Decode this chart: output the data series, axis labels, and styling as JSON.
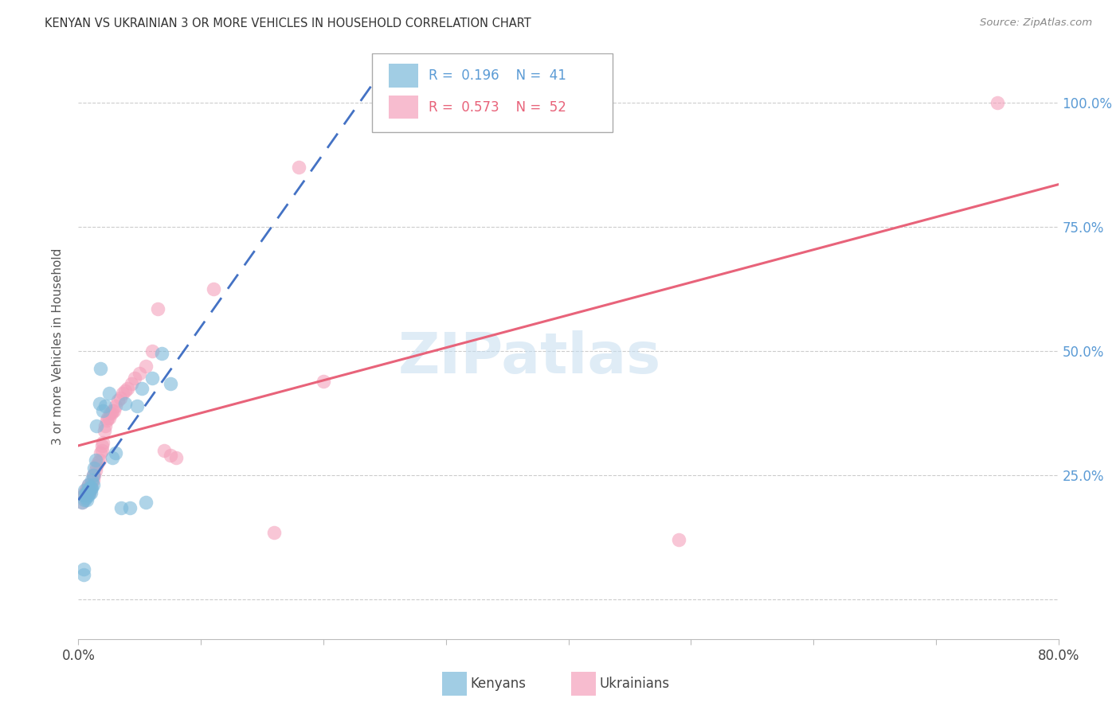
{
  "title": "KENYAN VS UKRAINIAN 3 OR MORE VEHICLES IN HOUSEHOLD CORRELATION CHART",
  "source": "Source: ZipAtlas.com",
  "ylabel": "3 or more Vehicles in Household",
  "xlim": [
    0.0,
    0.8
  ],
  "ylim": [
    -0.08,
    1.1
  ],
  "xtick_positions": [
    0.0,
    0.1,
    0.2,
    0.3,
    0.4,
    0.5,
    0.6,
    0.7,
    0.8
  ],
  "xticklabels": [
    "0.0%",
    "",
    "",
    "",
    "",
    "",
    "",
    "",
    "80.0%"
  ],
  "ytick_positions": [
    0.0,
    0.25,
    0.5,
    0.75,
    1.0
  ],
  "ytick_labels": [
    "",
    "25.0%",
    "50.0%",
    "75.0%",
    "100.0%"
  ],
  "background_color": "#ffffff",
  "grid_color": "#cccccc",
  "watermark_text": "ZIPatlas",
  "kenyan_color": "#7ab8d9",
  "ukrainian_color": "#f4a0bb",
  "kenyan_line_color": "#4472c4",
  "ukrainian_line_color": "#e8637a",
  "right_label_color": "#5b9bd5",
  "kenyan_R": 0.196,
  "kenyan_N": 41,
  "ukrainian_R": 0.573,
  "ukrainian_N": 52,
  "kenyan_x": [
    0.003,
    0.004,
    0.004,
    0.005,
    0.005,
    0.005,
    0.006,
    0.006,
    0.007,
    0.007,
    0.007,
    0.008,
    0.008,
    0.008,
    0.009,
    0.009,
    0.01,
    0.01,
    0.011,
    0.011,
    0.012,
    0.012,
    0.013,
    0.014,
    0.015,
    0.017,
    0.018,
    0.02,
    0.022,
    0.025,
    0.028,
    0.03,
    0.035,
    0.038,
    0.042,
    0.048,
    0.052,
    0.055,
    0.06,
    0.068,
    0.075
  ],
  "kenyan_y": [
    0.195,
    0.05,
    0.06,
    0.2,
    0.21,
    0.22,
    0.205,
    0.215,
    0.2,
    0.21,
    0.215,
    0.21,
    0.22,
    0.23,
    0.215,
    0.225,
    0.215,
    0.225,
    0.225,
    0.24,
    0.23,
    0.25,
    0.265,
    0.28,
    0.35,
    0.395,
    0.465,
    0.38,
    0.39,
    0.415,
    0.285,
    0.295,
    0.185,
    0.395,
    0.185,
    0.39,
    0.425,
    0.195,
    0.445,
    0.495,
    0.435
  ],
  "ukrainian_x": [
    0.003,
    0.004,
    0.005,
    0.006,
    0.007,
    0.007,
    0.008,
    0.009,
    0.009,
    0.01,
    0.011,
    0.012,
    0.012,
    0.013,
    0.014,
    0.015,
    0.016,
    0.017,
    0.018,
    0.019,
    0.019,
    0.02,
    0.021,
    0.022,
    0.023,
    0.024,
    0.025,
    0.026,
    0.027,
    0.028,
    0.029,
    0.03,
    0.032,
    0.034,
    0.036,
    0.038,
    0.04,
    0.043,
    0.046,
    0.05,
    0.055,
    0.06,
    0.065,
    0.07,
    0.075,
    0.08,
    0.11,
    0.16,
    0.18,
    0.2,
    0.49,
    0.75
  ],
  "ukrainian_y": [
    0.195,
    0.21,
    0.215,
    0.22,
    0.215,
    0.225,
    0.23,
    0.215,
    0.22,
    0.225,
    0.235,
    0.24,
    0.25,
    0.25,
    0.26,
    0.27,
    0.275,
    0.28,
    0.295,
    0.3,
    0.31,
    0.315,
    0.34,
    0.35,
    0.36,
    0.365,
    0.365,
    0.375,
    0.375,
    0.38,
    0.38,
    0.39,
    0.4,
    0.405,
    0.415,
    0.42,
    0.425,
    0.435,
    0.445,
    0.455,
    0.47,
    0.5,
    0.585,
    0.3,
    0.29,
    0.285,
    0.625,
    0.135,
    0.87,
    0.44,
    0.12,
    1.0
  ]
}
